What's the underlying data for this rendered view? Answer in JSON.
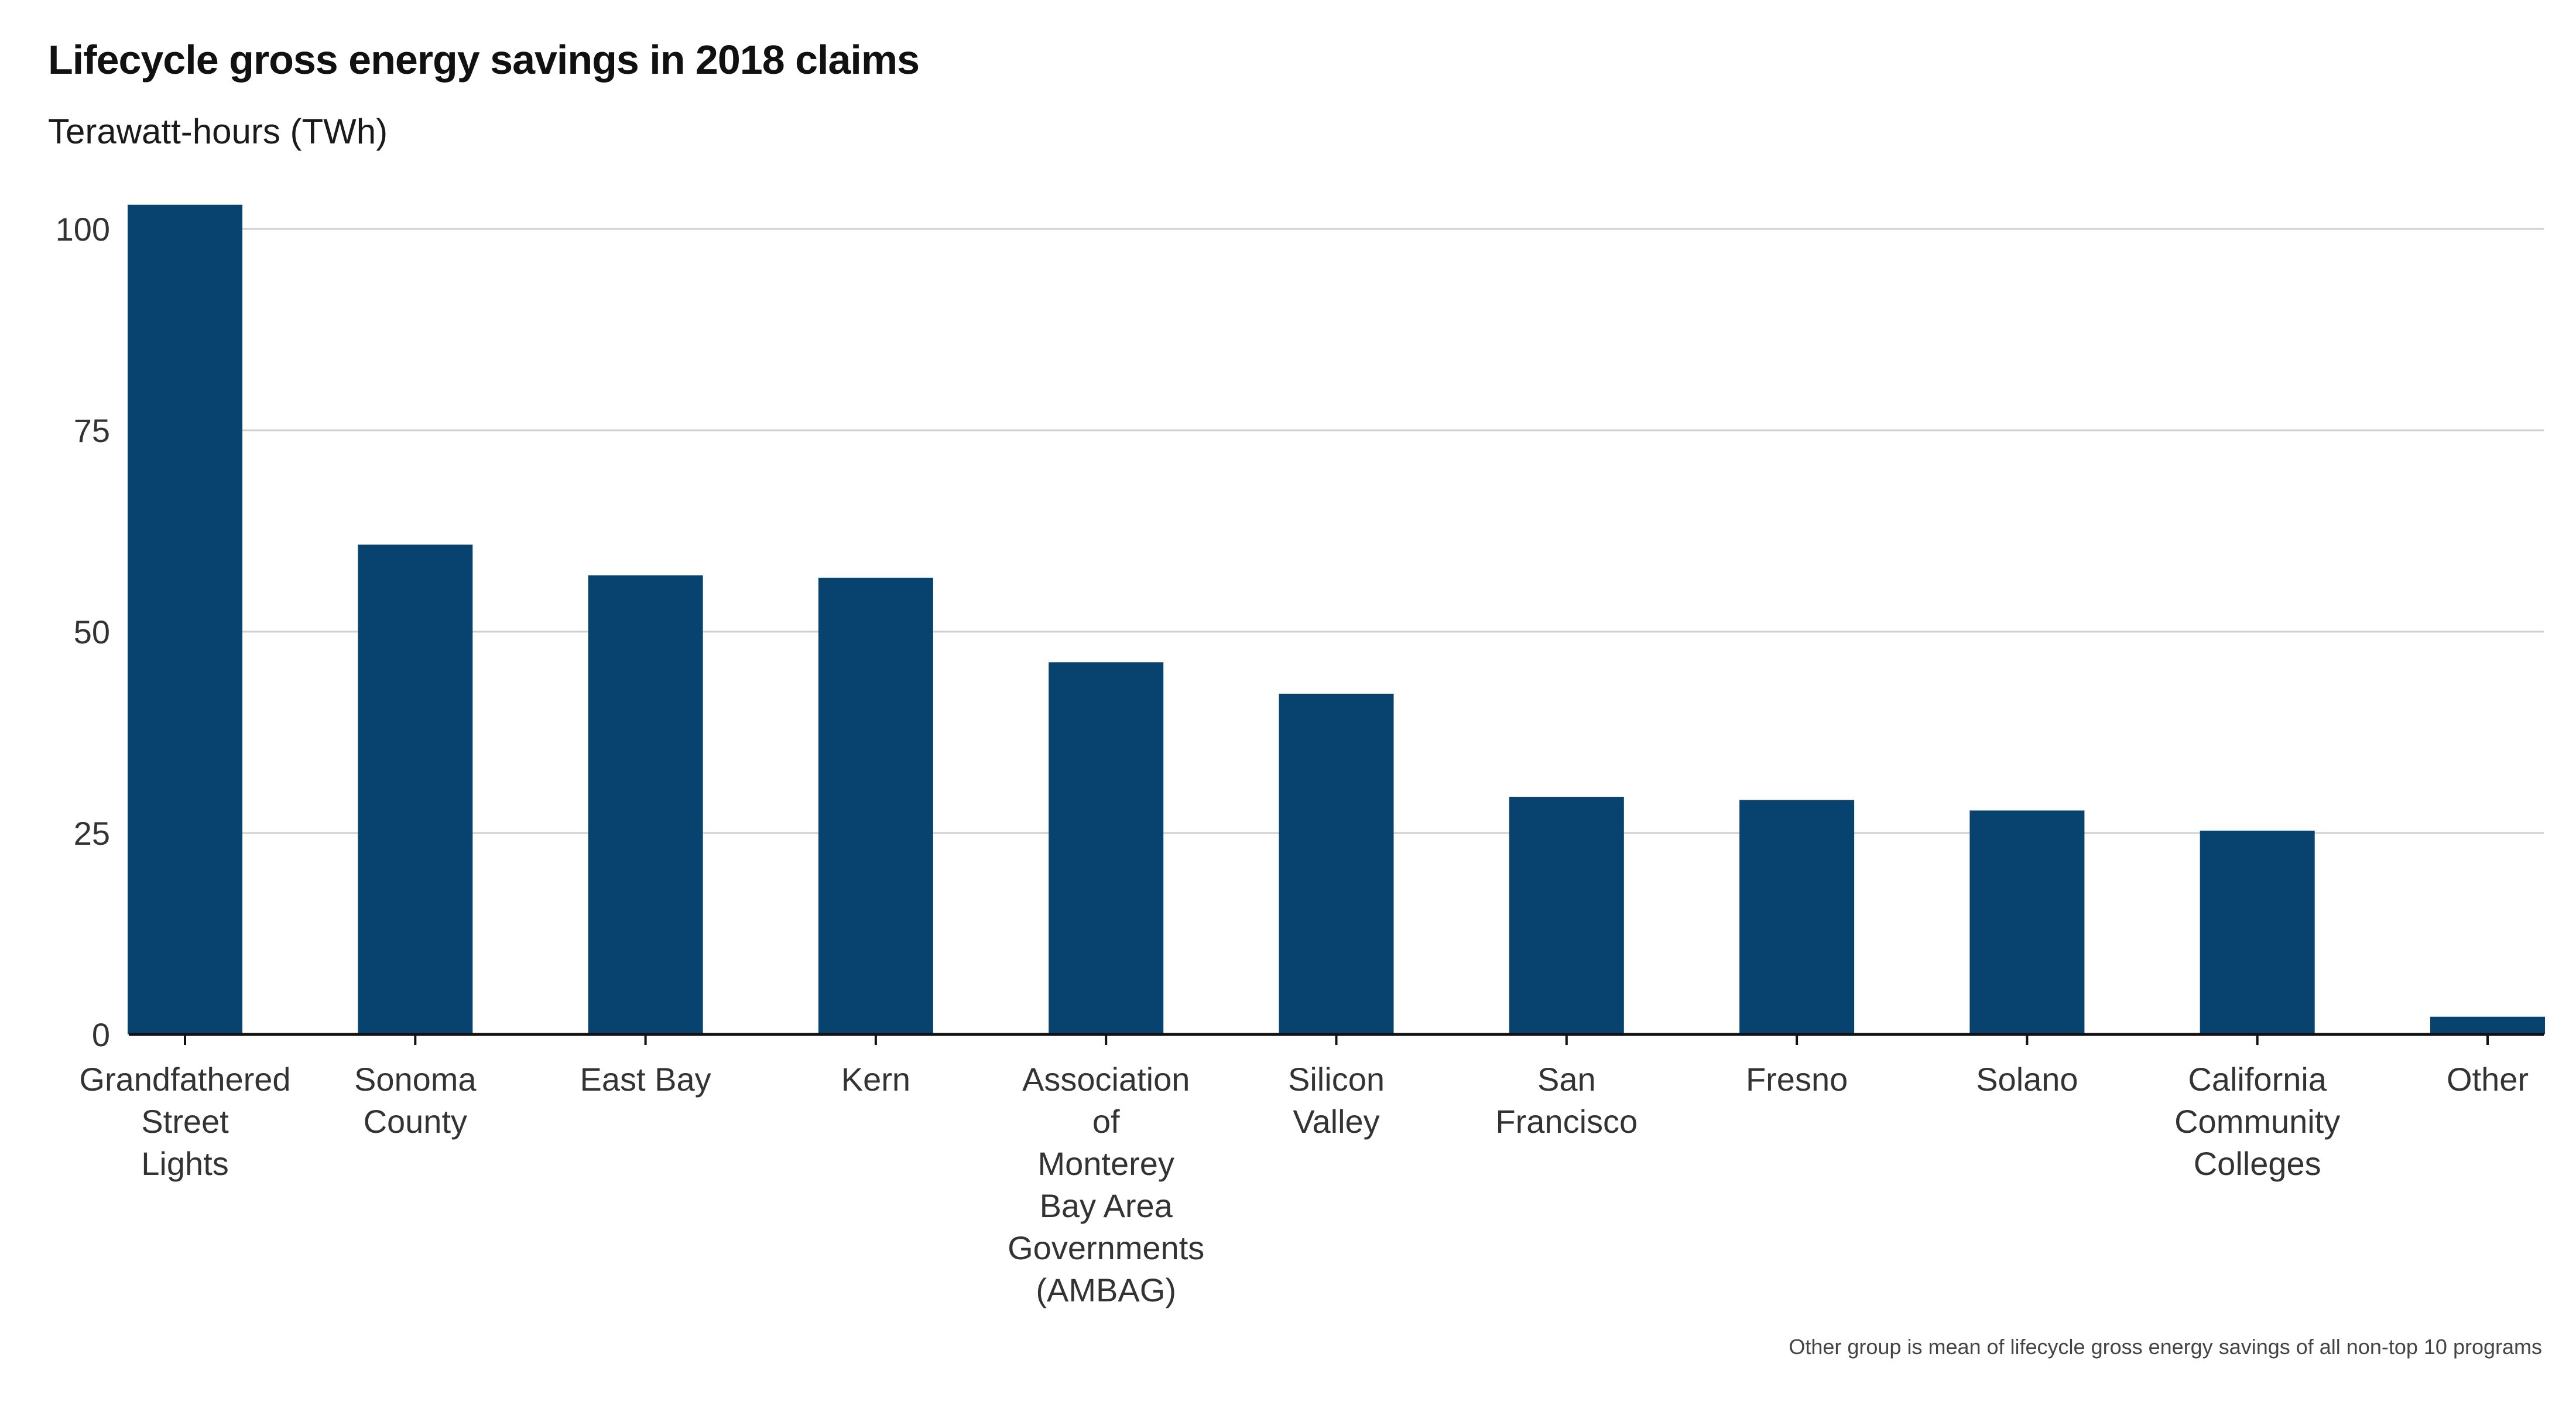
{
  "chart_data": {
    "type": "bar",
    "title": "Lifecycle gross energy savings in 2018 claims",
    "subtitle": "Terawatt-hours (TWh)",
    "caption": "Other group is mean of lifecycle gross energy savings of all non-top 10 programs",
    "xlabel": "",
    "ylabel": "",
    "categories": [
      "Grandfathered Street Lights",
      "Sonoma County",
      "East Bay",
      "Kern",
      "Association of Monterey Bay Area Governments (AMBAG)",
      "Silicon Valley",
      "San Francisco",
      "Fresno",
      "Solano",
      "California Community Colleges",
      "Other"
    ],
    "category_lines": [
      [
        "Grandfathered",
        "Street",
        "Lights"
      ],
      [
        "Sonoma",
        "County"
      ],
      [
        "East Bay"
      ],
      [
        "Kern"
      ],
      [
        "Association",
        "of",
        "Monterey",
        "Bay Area",
        "Governments",
        "(AMBAG)"
      ],
      [
        "Silicon",
        "Valley"
      ],
      [
        "San",
        "Francisco"
      ],
      [
        "Fresno"
      ],
      [
        "Solano"
      ],
      [
        "California",
        "Community",
        "Colleges"
      ],
      [
        "Other"
      ]
    ],
    "values": [
      103.0,
      60.8,
      57.0,
      56.7,
      46.2,
      42.3,
      29.5,
      29.1,
      27.8,
      25.3,
      2.2
    ],
    "ylim": [
      0,
      103
    ],
    "yticks": [
      0,
      25,
      50,
      75,
      100
    ],
    "grid": true,
    "legend": "none",
    "colors": {
      "bar": "#08426e",
      "grid": "#cfcfcf",
      "axis": "#111111"
    }
  }
}
